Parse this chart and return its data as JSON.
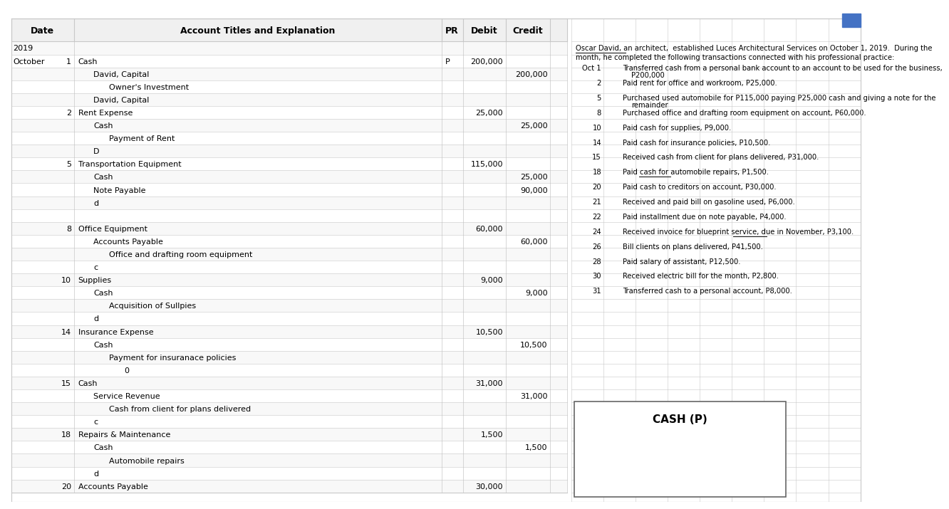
{
  "bg_color": "#ffffff",
  "grid_line_color": "#c8c8c8",
  "text_color": "#000000",
  "col_header_font_size": 9.0,
  "body_font_size": 8.0,
  "rp_font_size": 7.2,
  "journal_rows": [
    {
      "date_main": "2019",
      "day": "",
      "account": "",
      "pr": "",
      "debit": "",
      "credit": "",
      "indent": 0
    },
    {
      "date_main": "October",
      "day": "1",
      "account": "Cash",
      "pr": "P",
      "debit": "200,000",
      "credit": "",
      "indent": 0
    },
    {
      "date_main": "",
      "day": "",
      "account": "David, Capital",
      "pr": "",
      "debit": "",
      "credit": "200,000",
      "indent": 1
    },
    {
      "date_main": "",
      "day": "",
      "account": "Owner's Investment",
      "pr": "",
      "debit": "",
      "credit": "",
      "indent": 2
    },
    {
      "date_main": "",
      "day": "",
      "account": "David, Capital",
      "pr": "",
      "debit": "",
      "credit": "",
      "indent": 1
    },
    {
      "date_main": "",
      "day": "2",
      "account": "Rent Expense",
      "pr": "",
      "debit": "25,000",
      "credit": "",
      "indent": 0
    },
    {
      "date_main": "",
      "day": "",
      "account": "Cash",
      "pr": "",
      "debit": "",
      "credit": "25,000",
      "indent": 1
    },
    {
      "date_main": "",
      "day": "",
      "account": "Payment of Rent",
      "pr": "",
      "debit": "",
      "credit": "",
      "indent": 2
    },
    {
      "date_main": "",
      "day": "",
      "account": "D",
      "pr": "",
      "debit": "",
      "credit": "",
      "indent": 1
    },
    {
      "date_main": "",
      "day": "5",
      "account": "Transportation Equipment",
      "pr": "",
      "debit": "115,000",
      "credit": "",
      "indent": 0
    },
    {
      "date_main": "",
      "day": "",
      "account": "Cash",
      "pr": "",
      "debit": "",
      "credit": "25,000",
      "indent": 1
    },
    {
      "date_main": "",
      "day": "",
      "account": "Note Payable",
      "pr": "",
      "debit": "",
      "credit": "90,000",
      "indent": 1
    },
    {
      "date_main": "",
      "day": "",
      "account": "d",
      "pr": "",
      "debit": "",
      "credit": "",
      "indent": 1
    },
    {
      "date_main": "",
      "day": "",
      "account": "",
      "pr": "",
      "debit": "",
      "credit": "",
      "indent": 0
    },
    {
      "date_main": "",
      "day": "8",
      "account": "Office Equipment",
      "pr": "",
      "debit": "60,000",
      "credit": "",
      "indent": 0
    },
    {
      "date_main": "",
      "day": "",
      "account": "Accounts Payable",
      "pr": "",
      "debit": "",
      "credit": "60,000",
      "indent": 1
    },
    {
      "date_main": "",
      "day": "",
      "account": "Office and drafting room equipment",
      "pr": "",
      "debit": "",
      "credit": "",
      "indent": 2
    },
    {
      "date_main": "",
      "day": "",
      "account": "c",
      "pr": "",
      "debit": "",
      "credit": "",
      "indent": 1
    },
    {
      "date_main": "",
      "day": "10",
      "account": "Supplies",
      "pr": "",
      "debit": "9,000",
      "credit": "",
      "indent": 0
    },
    {
      "date_main": "",
      "day": "",
      "account": "Cash",
      "pr": "",
      "debit": "",
      "credit": "9,000",
      "indent": 1
    },
    {
      "date_main": "",
      "day": "",
      "account": "Acquisition of Sullpies",
      "pr": "",
      "debit": "",
      "credit": "",
      "indent": 2
    },
    {
      "date_main": "",
      "day": "",
      "account": "d",
      "pr": "",
      "debit": "",
      "credit": "",
      "indent": 1
    },
    {
      "date_main": "",
      "day": "14",
      "account": "Insurance Expense",
      "pr": "",
      "debit": "10,500",
      "credit": "",
      "indent": 0
    },
    {
      "date_main": "",
      "day": "",
      "account": "Cash",
      "pr": "",
      "debit": "",
      "credit": "10,500",
      "indent": 1
    },
    {
      "date_main": "",
      "day": "",
      "account": "Payment for insuranace policies",
      "pr": "",
      "debit": "",
      "credit": "",
      "indent": 2
    },
    {
      "date_main": "",
      "day": "",
      "account": "0",
      "pr": "",
      "debit": "",
      "credit": "",
      "indent": 3
    },
    {
      "date_main": "",
      "day": "15",
      "account": "Cash",
      "pr": "",
      "debit": "31,000",
      "credit": "",
      "indent": 0
    },
    {
      "date_main": "",
      "day": "",
      "account": "Service Revenue",
      "pr": "",
      "debit": "",
      "credit": "31,000",
      "indent": 1
    },
    {
      "date_main": "",
      "day": "",
      "account": "Cash from client for plans delivered",
      "pr": "",
      "debit": "",
      "credit": "",
      "indent": 2
    },
    {
      "date_main": "",
      "day": "",
      "account": "c",
      "pr": "",
      "debit": "",
      "credit": "",
      "indent": 1
    },
    {
      "date_main": "",
      "day": "18",
      "account": "Repairs & Maintenance",
      "pr": "",
      "debit": "1,500",
      "credit": "",
      "indent": 0
    },
    {
      "date_main": "",
      "day": "",
      "account": "Cash",
      "pr": "",
      "debit": "",
      "credit": "1,500",
      "indent": 1
    },
    {
      "date_main": "",
      "day": "",
      "account": "Automobile repairs",
      "pr": "",
      "debit": "",
      "credit": "",
      "indent": 2
    },
    {
      "date_main": "",
      "day": "",
      "account": "d",
      "pr": "",
      "debit": "",
      "credit": "",
      "indent": 1
    },
    {
      "date_main": "",
      "day": "20",
      "account": "Accounts Payable",
      "pr": "",
      "debit": "30,000",
      "credit": "",
      "indent": 0
    }
  ],
  "right_panel_items": [
    {
      "num": "Oct 1",
      "text": "Transferred cash from a personal bank account to an account to be used for the business,",
      "text2": "P200,000"
    },
    {
      "num": "2",
      "text": "Paid rent for office and workroom, P25,000.",
      "text2": ""
    },
    {
      "num": "5",
      "text": "Purchased used automobile for P115,000 paying P25,000 cash and giving a note for the",
      "text2": "remainder"
    },
    {
      "num": "8",
      "text": "Purchased office and drafting room equipment on account, P60,000.",
      "text2": ""
    },
    {
      "num": "10",
      "text": "Paid cash for supplies, P9,000.",
      "text2": ""
    },
    {
      "num": "14",
      "text": "Paid cash for insurance policies, P10,500.",
      "text2": ""
    },
    {
      "num": "15",
      "text": "Received cash from client for plans delivered, P31,000.",
      "text2": ""
    },
    {
      "num": "18",
      "text": "Paid cash for automobile repairs, P1,500.",
      "text2": ""
    },
    {
      "num": "20",
      "text": "Paid cash to creditors on account, P30,000.",
      "text2": ""
    },
    {
      "num": "21",
      "text": "Received and paid bill on gasoline used, P6,000.",
      "text2": ""
    },
    {
      "num": "22",
      "text": "Paid installment due on note payable, P4,000.",
      "text2": ""
    },
    {
      "num": "24",
      "text": "Received invoice for blueprint service, due in November, P3,100.",
      "text2": ""
    },
    {
      "num": "26",
      "text": "Bill clients on plans delivered, P41,500.",
      "text2": ""
    },
    {
      "num": "28",
      "text": "Paid salary of assistant, P12,500.",
      "text2": ""
    },
    {
      "num": "30",
      "text": "Received electric bill for the month, P2,800.",
      "text2": ""
    },
    {
      "num": "31",
      "text": "Transferred cash to a personal account, P8,000.",
      "text2": ""
    }
  ],
  "cash_box_title": "CASH (P)"
}
